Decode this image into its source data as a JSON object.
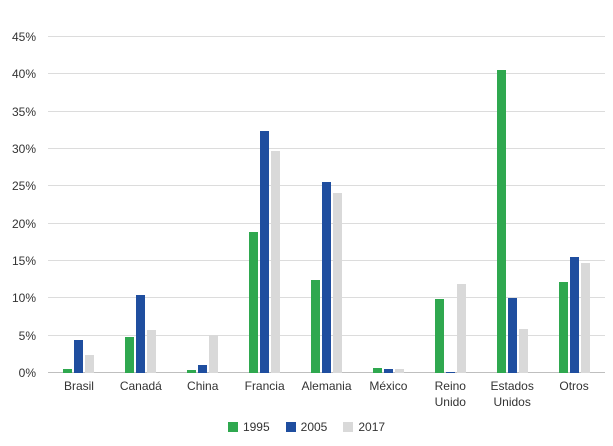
{
  "chart_data": {
    "type": "bar",
    "title": "",
    "xlabel": "",
    "ylabel": "",
    "categories": [
      "Brasil",
      "Canadá",
      "China",
      "Francia",
      "Alemania",
      "México",
      "Reino Unido",
      "Estados Unidos",
      "Otros"
    ],
    "series": [
      {
        "name": "1995",
        "color": "#2fa84f",
        "values": [
          0.6,
          4.8,
          0.4,
          18.9,
          12.5,
          0.7,
          9.9,
          40.6,
          12.2
        ]
      },
      {
        "name": "2005",
        "color": "#1f4e9f",
        "values": [
          4.4,
          10.5,
          1.1,
          32.4,
          25.6,
          0.6,
          0.2,
          10.1,
          15.6
        ]
      },
      {
        "name": "2017",
        "color": "#d9d9d9",
        "values": [
          2.4,
          5.8,
          5.1,
          29.8,
          24.1,
          0.5,
          11.9,
          5.9,
          14.7
        ]
      }
    ],
    "ylim": [
      0,
      45
    ],
    "ytick_step": 5,
    "ytick_suffix": "%",
    "yticks": [
      "0%",
      "5%",
      "10%",
      "15%",
      "20%",
      "25%",
      "30%",
      "35%",
      "40%",
      "45%"
    ],
    "grid": true,
    "legend_position": "bottom"
  }
}
